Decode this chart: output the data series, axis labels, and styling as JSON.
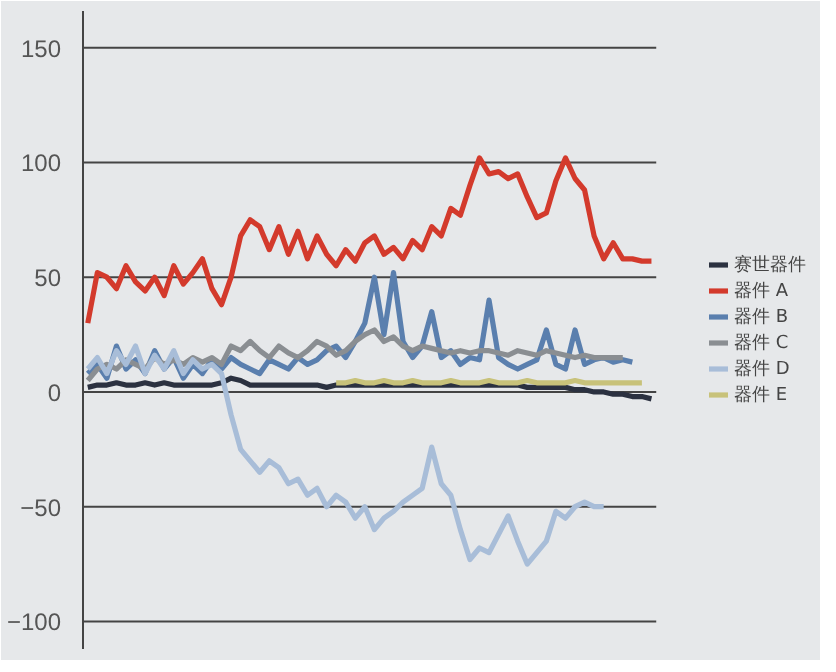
{
  "chart_data": {
    "type": "line",
    "categories": [
      null,
      null,
      null,
      null,
      null,
      null,
      null,
      null,
      null,
      null,
      null,
      null,
      null,
      null,
      null,
      null,
      null,
      null,
      null,
      null,
      null,
      null,
      null,
      null,
      null,
      null,
      null,
      null,
      null,
      null,
      null,
      null,
      null,
      null,
      null,
      null,
      null,
      null,
      null,
      null,
      null,
      null,
      null,
      null,
      null,
      null,
      null,
      null,
      null,
      null,
      null,
      null,
      null,
      null,
      null,
      null,
      null,
      null,
      null,
      null
    ],
    "ylim": [
      -112,
      166
    ],
    "yticks": [
      -100,
      -50,
      0,
      50,
      100,
      150
    ],
    "grid": "y",
    "legend": "right",
    "tick_labels": "y",
    "marker": "none",
    "line_style": "solid",
    "series": [
      {
        "name": "赛世器件",
        "color": "#2b3140",
        "values": [
          2,
          3,
          3,
          4,
          3,
          3,
          4,
          3,
          4,
          3,
          3,
          3,
          3,
          3,
          4,
          6,
          5,
          3,
          3,
          3,
          3,
          3,
          3,
          3,
          3,
          2,
          3,
          3,
          3,
          3,
          3,
          3,
          3,
          3,
          3,
          3,
          3,
          3,
          3,
          3,
          3,
          3,
          3,
          3,
          3,
          3,
          2,
          2,
          2,
          2,
          2,
          1,
          1,
          0,
          0,
          -1,
          -1,
          -2,
          -2,
          -3
        ]
      },
      {
        "name": "器件 A",
        "color": "#d33a2c",
        "values": [
          30,
          52,
          50,
          45,
          55,
          48,
          44,
          50,
          42,
          55,
          47,
          52,
          58,
          45,
          38,
          50,
          68,
          75,
          72,
          62,
          72,
          60,
          70,
          58,
          68,
          60,
          55,
          62,
          57,
          65,
          68,
          60,
          63,
          58,
          66,
          62,
          72,
          68,
          80,
          77,
          90,
          102,
          95,
          96,
          93,
          95,
          85,
          76,
          78,
          92,
          102,
          93,
          88,
          68,
          58,
          65,
          58,
          58,
          57,
          57
        ]
      },
      {
        "name": "器件 B",
        "color": "#5a7fae",
        "values": [
          8,
          12,
          6,
          20,
          10,
          14,
          8,
          18,
          10,
          15,
          6,
          12,
          8,
          14,
          10,
          15,
          12,
          10,
          8,
          14,
          12,
          10,
          15,
          12,
          14,
          18,
          20,
          15,
          22,
          30,
          50,
          25,
          52,
          22,
          15,
          20,
          35,
          15,
          18,
          12,
          15,
          14,
          40,
          15,
          12,
          10,
          12,
          14,
          27,
          12,
          10,
          27,
          12,
          14,
          15,
          13,
          14,
          13,
          null,
          null
        ]
      },
      {
        "name": "器件 C",
        "color": "#8a8e92",
        "values": [
          5,
          10,
          12,
          10,
          14,
          12,
          10,
          15,
          12,
          14,
          12,
          15,
          13,
          15,
          12,
          20,
          18,
          22,
          18,
          15,
          20,
          17,
          15,
          18,
          22,
          20,
          16,
          18,
          22,
          25,
          27,
          22,
          24,
          20,
          18,
          20,
          19,
          18,
          17,
          18,
          17,
          18,
          18,
          17,
          16,
          18,
          17,
          16,
          18,
          17,
          16,
          15,
          16,
          15,
          15,
          15,
          15,
          null,
          null,
          null
        ]
      },
      {
        "name": "器件 D",
        "color": "#a8bdd8",
        "values": [
          10,
          15,
          8,
          18,
          12,
          20,
          8,
          16,
          10,
          18,
          8,
          14,
          10,
          12,
          8,
          -10,
          -25,
          -30,
          -35,
          -30,
          -33,
          -40,
          -38,
          -45,
          -42,
          -50,
          -45,
          -48,
          -55,
          -50,
          -60,
          -55,
          -52,
          -48,
          -45,
          -42,
          -24,
          -40,
          -45,
          -60,
          -73,
          -68,
          -70,
          -62,
          -54,
          -65,
          -75,
          -70,
          -65,
          -52,
          -55,
          -50,
          -48,
          -50,
          -50,
          null,
          null,
          null,
          null,
          null
        ]
      },
      {
        "name": "器件 E",
        "color": "#c8c27a",
        "values": [
          null,
          null,
          null,
          null,
          null,
          null,
          null,
          null,
          null,
          null,
          null,
          null,
          null,
          null,
          null,
          null,
          null,
          null,
          null,
          null,
          null,
          null,
          null,
          null,
          null,
          null,
          4,
          4,
          5,
          4,
          4,
          5,
          4,
          4,
          5,
          4,
          4,
          4,
          5,
          4,
          4,
          4,
          5,
          4,
          4,
          4,
          5,
          4,
          4,
          4,
          4,
          5,
          4,
          4,
          4,
          4,
          4,
          4,
          4,
          null
        ]
      }
    ]
  }
}
